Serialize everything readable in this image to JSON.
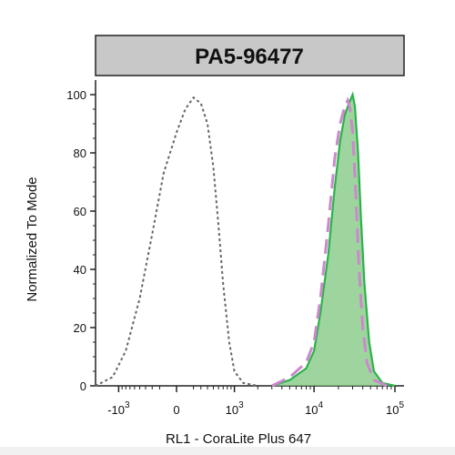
{
  "chart_data": {
    "type": "area",
    "title": "PA5-96477",
    "xlabel": "RL1 - CoraLite Plus 647",
    "ylabel": "Normalized To Mode",
    "x_scale": "biexponential",
    "ylim": [
      0,
      100
    ],
    "y_ticks": [
      "0",
      "20",
      "40",
      "60",
      "80",
      "100"
    ],
    "x_ticks": [
      {
        "value": -1000,
        "base": "-10",
        "exp": "3"
      },
      {
        "value": 0,
        "base": "0",
        "exp": ""
      },
      {
        "value": 1000,
        "base": "10",
        "exp": "3"
      },
      {
        "value": 10000,
        "base": "10",
        "exp": "4"
      },
      {
        "value": 100000,
        "base": "10",
        "exp": "5"
      }
    ],
    "series": [
      {
        "style": "dotted-outline",
        "color": "#666666",
        "x": [
          -2000,
          -1200,
          -800,
          -500,
          -300,
          -150,
          0,
          100,
          200,
          300,
          400,
          500,
          600,
          700,
          850,
          1000,
          1300,
          2000
        ],
        "y": [
          0,
          3,
          12,
          30,
          52,
          73,
          87,
          95,
          99,
          97,
          90,
          75,
          55,
          35,
          15,
          5,
          1,
          0
        ]
      },
      {
        "style": "dashed-outline",
        "color": "#cc88cc",
        "x": [
          3000,
          5000,
          8000,
          10000,
          12000,
          15000,
          18000,
          21000,
          24000,
          26000,
          28000,
          30000,
          33000,
          36000,
          40000,
          45000,
          55000,
          80000
        ],
        "y": [
          0,
          3,
          8,
          15,
          30,
          55,
          78,
          90,
          96,
          98,
          95,
          87,
          65,
          40,
          20,
          8,
          2,
          0
        ]
      },
      {
        "style": "filled",
        "color": "#2bb24a",
        "fill": "#7ec77e",
        "x": [
          3000,
          5000,
          8000,
          10000,
          12000,
          15000,
          18000,
          21000,
          24000,
          27000,
          30000,
          32000,
          35000,
          38000,
          42000,
          48000,
          55000,
          70000,
          100000
        ],
        "y": [
          0,
          2,
          6,
          12,
          25,
          45,
          68,
          84,
          93,
          97,
          100,
          96,
          80,
          58,
          35,
          15,
          5,
          1,
          0
        ]
      }
    ]
  }
}
